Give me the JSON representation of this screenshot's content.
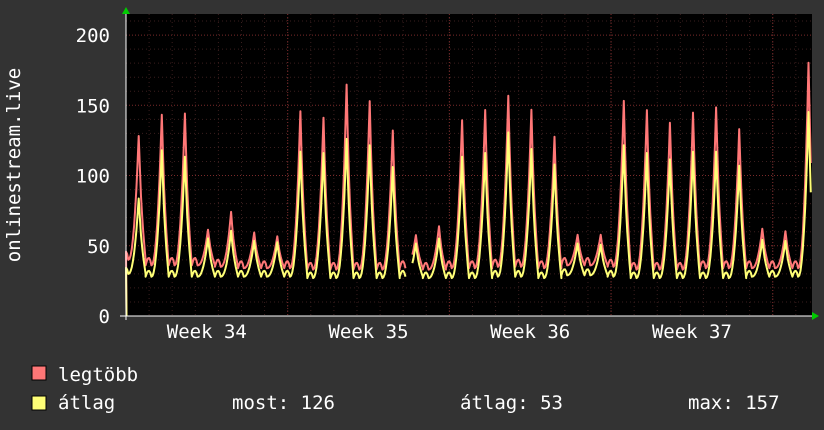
{
  "chart_data": {
    "type": "line",
    "title": "",
    "ylabel": "onlinestream.live",
    "xlabel": "",
    "ylim": [
      0,
      215
    ],
    "y_ticks": [
      0,
      50,
      100,
      150,
      200
    ],
    "x_range_days": [
      0,
      29.7
    ],
    "x_ticks": [
      {
        "label": "Week 34",
        "day": 3.5
      },
      {
        "label": "Week 35",
        "day": 10.5
      },
      {
        "label": "Week 36",
        "day": 17.5
      },
      {
        "label": "Week 37",
        "day": 24.5
      }
    ],
    "series": [
      {
        "name": "legtöbb",
        "color": "#ff7777",
        "peaks": [
          137,
          154,
          155,
          64,
          78,
          62,
          59,
          157,
          152,
          178,
          165,
          142,
          60,
          67,
          150,
          158,
          169,
          158,
          137,
          60,
          60,
          165,
          158,
          148,
          156,
          160,
          143,
          65,
          63,
          195,
          159,
          157
        ],
        "troughs": [
          40,
          36,
          36,
          36,
          35,
          34,
          34,
          34,
          33,
          33,
          33,
          33,
          34,
          33,
          34,
          34,
          35,
          35,
          34,
          36,
          36,
          35,
          33,
          33,
          33,
          34,
          34,
          34,
          34,
          34,
          33,
          33
        ]
      },
      {
        "name": "átlag",
        "color": "#ffff77",
        "peaks": [
          89,
          127,
          122,
          58,
          64,
          56,
          55,
          126,
          125,
          136,
          131,
          114,
          54,
          58,
          122,
          125,
          141,
          128,
          116,
          54,
          53,
          131,
          125,
          120,
          126,
          126,
          115,
          57,
          56,
          157,
          127,
          126
        ],
        "troughs": [
          30,
          28,
          28,
          28,
          28,
          28,
          28,
          28,
          27,
          27,
          27,
          27,
          28,
          27,
          27,
          27,
          28,
          28,
          27,
          29,
          29,
          28,
          27,
          27,
          27,
          27,
          27,
          28,
          28,
          28,
          27,
          27
        ]
      }
    ],
    "gap_days": [
      12.1,
      12.4
    ],
    "legend": {
      "placement": "bottom-left",
      "items": [
        {
          "label": "legtöbb",
          "color": "#ff7777"
        },
        {
          "label": "átlag",
          "color": "#ffff77"
        }
      ]
    },
    "stats": {
      "most": "most: 126",
      "atlag": "átlag: 53",
      "max": "max: 157"
    },
    "colors": {
      "background": "#333333",
      "plot_background": "#000000",
      "grid": "#5a2a2a",
      "axis": "#ffffff",
      "arrow": "#00cc00"
    }
  }
}
